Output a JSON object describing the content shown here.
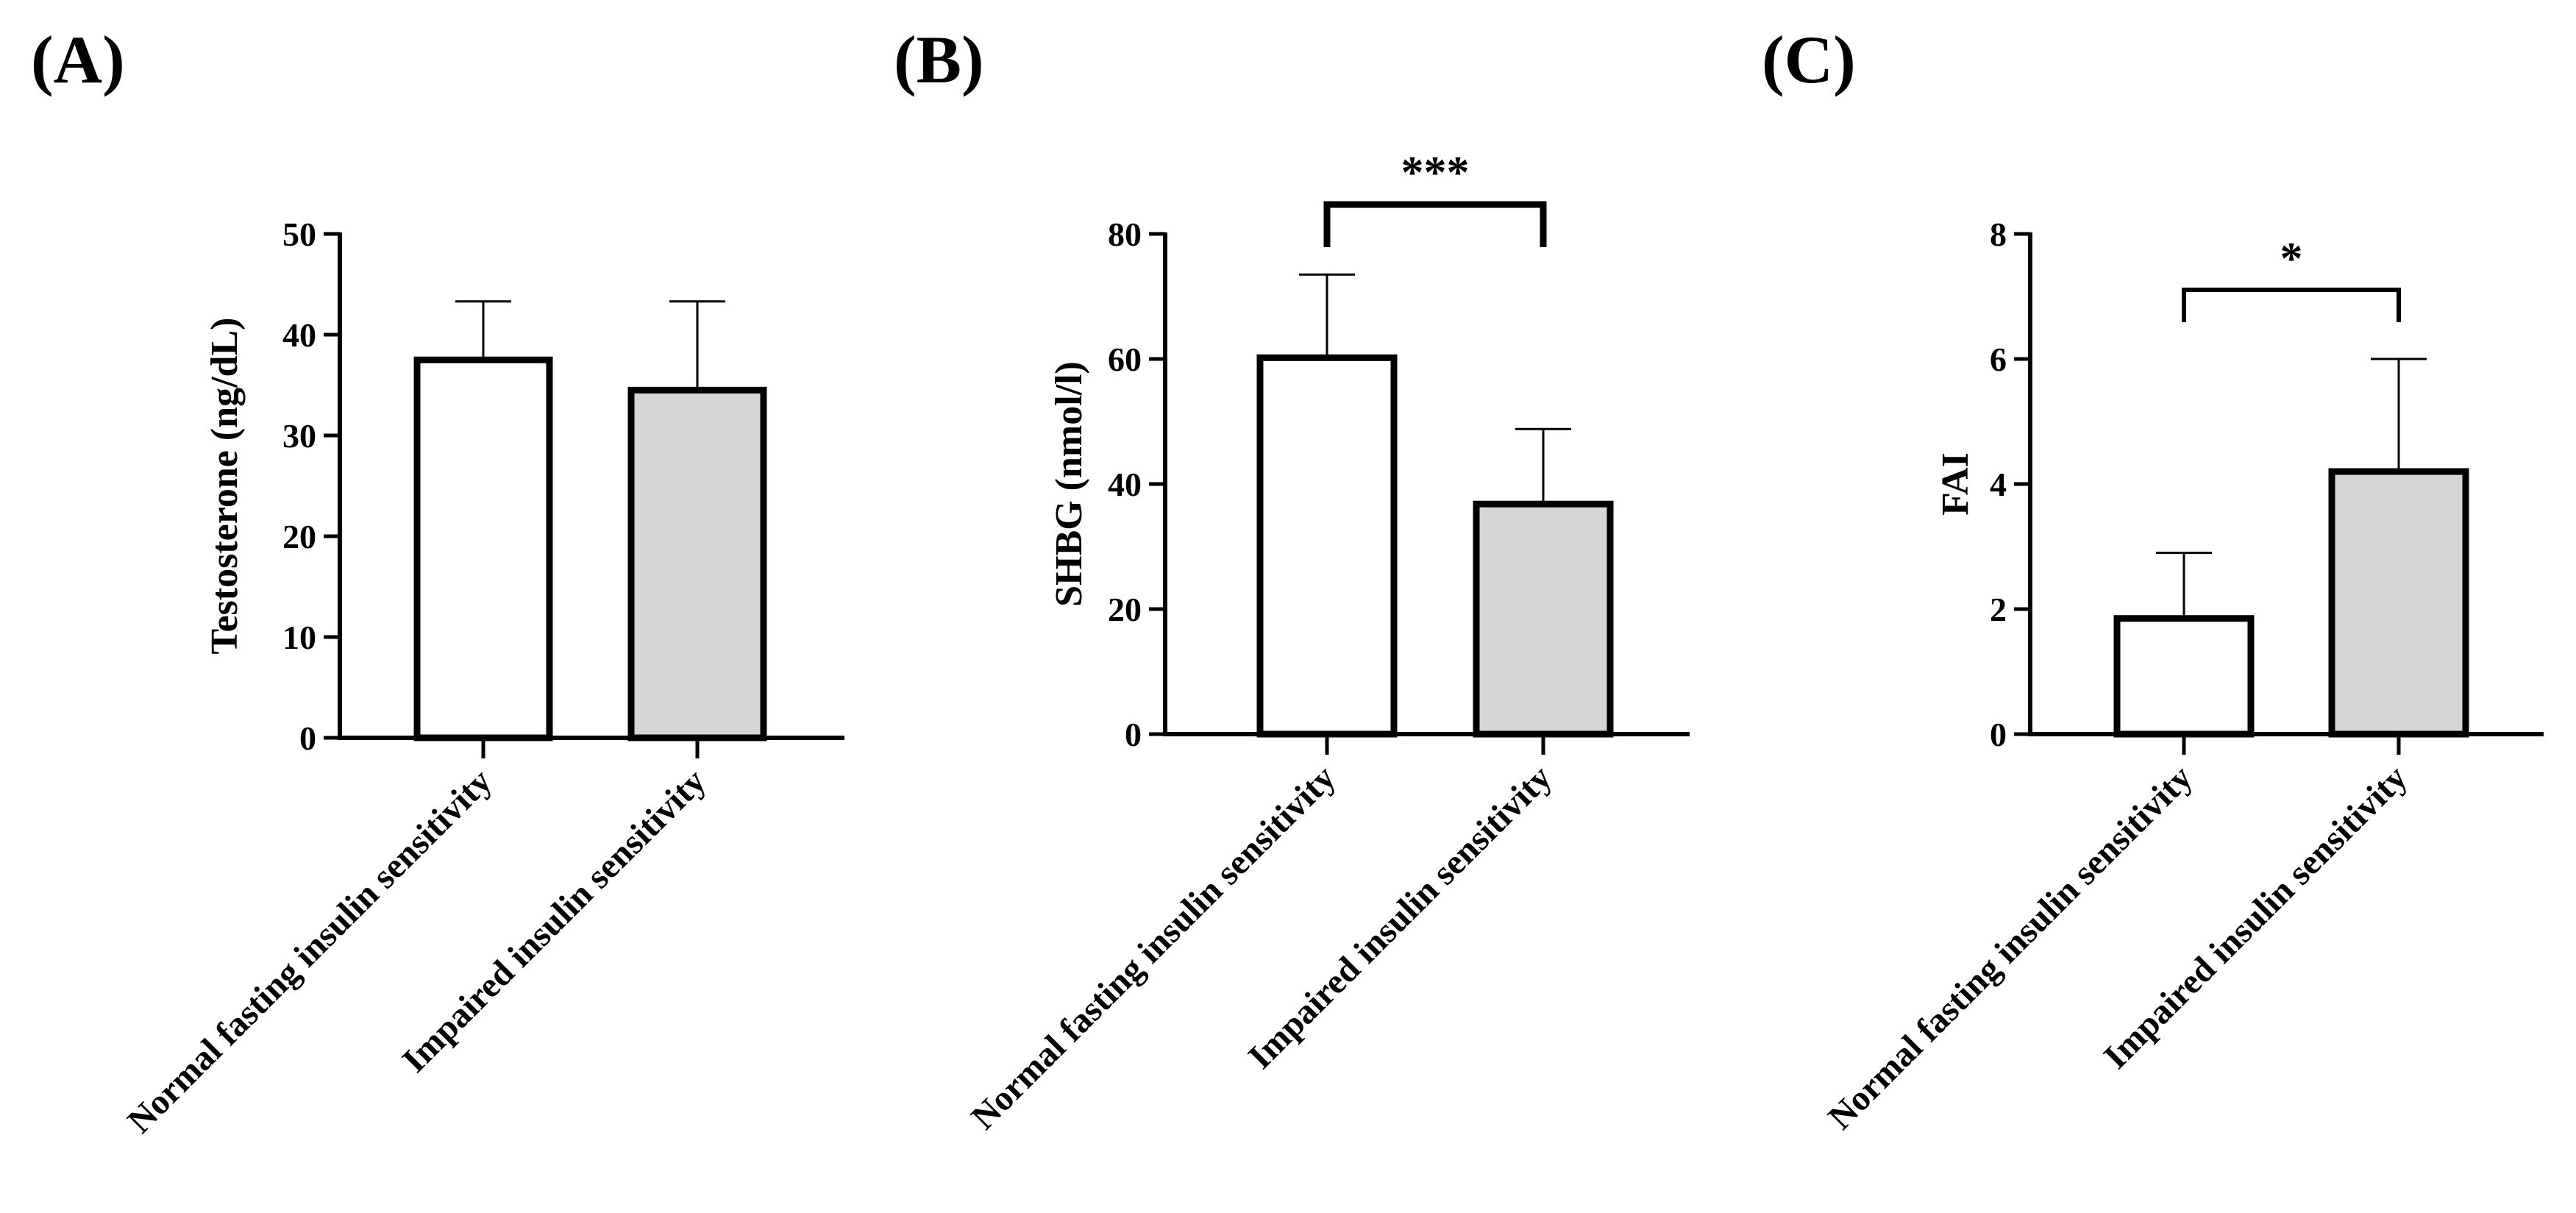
{
  "chart_data": [
    {
      "type": "bar",
      "panel_label": "(A)",
      "categories": [
        "Normal fasting insulin sensitivity",
        "Impaired insulin sensitivity"
      ],
      "values": [
        37.5,
        34.5
      ],
      "error_upper": [
        43.3,
        43.3
      ],
      "bar_colors": [
        "#ffffff",
        "#d6d6d6"
      ],
      "ylabel": "Testosterone  (ng/dL)",
      "ylim": [
        0,
        50
      ],
      "yticks": [
        0,
        10,
        20,
        30,
        40,
        50
      ],
      "significance": null
    },
    {
      "type": "bar",
      "panel_label": "(B)",
      "categories": [
        "Normal fasting insulin sensitivity",
        "Impaired insulin sensitivity"
      ],
      "values": [
        60.2,
        36.8
      ],
      "error_upper": [
        73.5,
        48.8
      ],
      "bar_colors": [
        "#ffffff",
        "#d6d6d6"
      ],
      "ylabel": "SHBG (nmol/l)",
      "ylim": [
        0,
        80
      ],
      "yticks": [
        0,
        20,
        40,
        60,
        80
      ],
      "significance": "***"
    },
    {
      "type": "bar",
      "panel_label": "(C)",
      "categories": [
        "Normal fasting insulin sensitivity",
        "Impaired insulin sensitivity"
      ],
      "values": [
        1.85,
        4.2
      ],
      "error_upper": [
        2.9,
        6.0
      ],
      "bar_colors": [
        "#ffffff",
        "#d6d6d6"
      ],
      "ylabel": "FAI",
      "ylim": [
        0,
        8
      ],
      "yticks": [
        0,
        2,
        4,
        6,
        8
      ],
      "significance": "*"
    }
  ]
}
